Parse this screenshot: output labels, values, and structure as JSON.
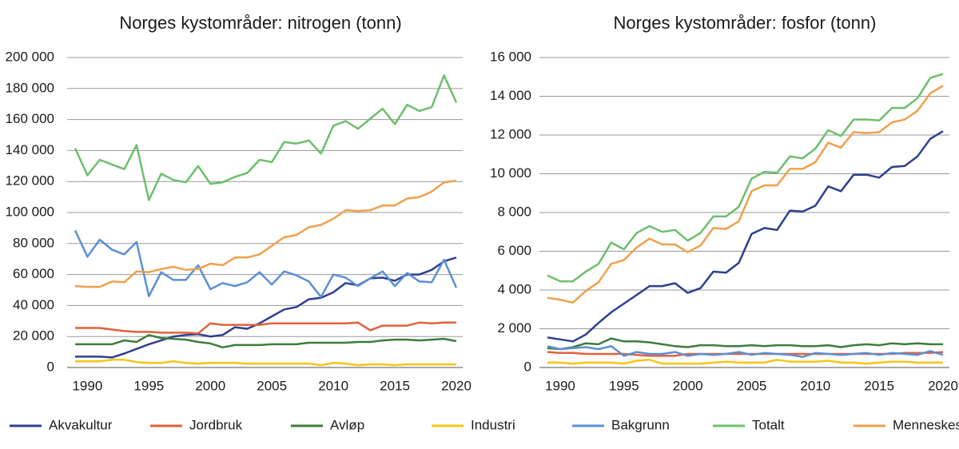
{
  "legend": [
    {
      "name": "Akvakultur",
      "color": "#2e3f8f"
    },
    {
      "name": "Jordbruk",
      "color": "#e0623a"
    },
    {
      "name": "Avløp",
      "color": "#3d7d3a"
    },
    {
      "name": "Industri",
      "color": "#f5c518"
    },
    {
      "name": "Bakgrunn",
      "color": "#5b8fd6"
    },
    {
      "name": "Totalt",
      "color": "#6cbf6c"
    },
    {
      "name": "Menneskeskapt",
      "color": "#f0a04b"
    }
  ],
  "chart_data": [
    {
      "type": "line",
      "title": "Norges kystområder: nitrogen (tonn)",
      "x": [
        1989,
        1990,
        1991,
        1992,
        1993,
        1994,
        1995,
        1996,
        1997,
        1998,
        1999,
        2000,
        2001,
        2002,
        2003,
        2004,
        2005,
        2006,
        2007,
        2008,
        2009,
        2010,
        2011,
        2012,
        2013,
        2014,
        2015,
        2016,
        2017,
        2018,
        2019,
        2020
      ],
      "xlim": [
        1989,
        2020
      ],
      "xticks": [
        1990,
        1995,
        2000,
        2005,
        2010,
        2015,
        2020
      ],
      "ylim": [
        0,
        200000
      ],
      "yticks": [
        0,
        {
          "value": 20000,
          "label": "20 000"
        },
        {
          "value": 40000,
          "label": "40 000"
        },
        {
          "value": 60000,
          "label": "60 000"
        },
        {
          "value": 80000,
          "label": "80 000"
        },
        {
          "value": 100000,
          "label": "100 000"
        },
        {
          "value": 120000,
          "label": "120 000"
        },
        {
          "value": 140000,
          "label": "140 000"
        },
        {
          "value": 160000,
          "label": "160 000"
        },
        {
          "value": 180000,
          "label": "180 000"
        },
        {
          "value": 200000,
          "label": "200 000"
        }
      ],
      "grid": true,
      "series": [
        {
          "color": "#2e3f8f",
          "values": [
            7000,
            7000,
            7000,
            6500,
            9000,
            12000,
            15000,
            17500,
            20000,
            21000,
            21500,
            20000,
            21000,
            26000,
            25000,
            28500,
            33000,
            37500,
            39000,
            44000,
            45000,
            48500,
            54500,
            53000,
            57500,
            58000,
            56000,
            60000,
            60000,
            63000,
            68500,
            71000
          ]
        },
        {
          "color": "#e0623a",
          "values": [
            25500,
            25500,
            25500,
            24500,
            23500,
            23000,
            23000,
            22500,
            22500,
            22500,
            22000,
            28500,
            27500,
            27500,
            27500,
            27500,
            28500,
            28500,
            28500,
            28500,
            28500,
            28500,
            28500,
            29000,
            24000,
            27000,
            27000,
            27000,
            29000,
            28500,
            29000,
            29000
          ]
        },
        {
          "color": "#3d7d3a",
          "values": [
            15000,
            15000,
            15000,
            15000,
            17500,
            16500,
            21000,
            19000,
            18500,
            18000,
            16500,
            15500,
            13000,
            14500,
            14500,
            14500,
            15000,
            15000,
            15000,
            16000,
            16000,
            16000,
            16000,
            16500,
            16500,
            17500,
            18000,
            18000,
            17500,
            18000,
            18500,
            17000
          ]
        },
        {
          "color": "#f5c518",
          "values": [
            4000,
            4000,
            4000,
            5000,
            5000,
            3500,
            3000,
            3000,
            4000,
            3000,
            2500,
            3000,
            3000,
            3000,
            2500,
            2500,
            2500,
            2500,
            2500,
            2500,
            1500,
            3000,
            2500,
            1500,
            2000,
            2000,
            1500,
            2000,
            2000,
            2000,
            2000,
            2000
          ]
        },
        {
          "color": "#5b8fd6",
          "values": [
            88500,
            71500,
            82500,
            76000,
            73000,
            81000,
            46000,
            61500,
            56500,
            56500,
            66000,
            50500,
            54500,
            52500,
            55000,
            61500,
            53500,
            62000,
            59500,
            55500,
            45500,
            60000,
            58000,
            52500,
            57500,
            62000,
            52500,
            61000,
            55500,
            55000,
            69500,
            51500
          ]
        },
        {
          "color": "#6cbf6c",
          "values": [
            141500,
            124000,
            134000,
            131000,
            128000,
            143500,
            108000,
            125000,
            121000,
            119500,
            130000,
            118500,
            119500,
            123000,
            125500,
            134000,
            132500,
            145500,
            144500,
            146500,
            138000,
            156000,
            159000,
            154000,
            160500,
            167000,
            157000,
            169500,
            165500,
            168000,
            188500,
            171000
          ]
        },
        {
          "color": "#f0a04b",
          "values": [
            52500,
            52000,
            52000,
            55500,
            55000,
            62000,
            61500,
            63500,
            65000,
            63000,
            63500,
            67000,
            66000,
            71000,
            71000,
            73000,
            78500,
            84000,
            85500,
            90500,
            92000,
            96000,
            101500,
            101000,
            101500,
            104500,
            104500,
            109000,
            110000,
            113500,
            119500,
            120500
          ]
        }
      ]
    },
    {
      "type": "line",
      "title": "Norges kystområder: fosfor (tonn)",
      "x": [
        1989,
        1990,
        1991,
        1992,
        1993,
        1994,
        1995,
        1996,
        1997,
        1998,
        1999,
        2000,
        2001,
        2002,
        2003,
        2004,
        2005,
        2006,
        2007,
        2008,
        2009,
        2010,
        2011,
        2012,
        2013,
        2014,
        2015,
        2016,
        2017,
        2018,
        2019,
        2020
      ],
      "xlim": [
        1989,
        2020
      ],
      "xticks": [
        1990,
        1995,
        2000,
        2005,
        2010,
        2015,
        2020
      ],
      "ylim": [
        0,
        16000
      ],
      "yticks": [
        0,
        {
          "value": 2000,
          "label": "2 000"
        },
        {
          "value": 4000,
          "label": "4 000"
        },
        {
          "value": 6000,
          "label": "6 000"
        },
        {
          "value": 8000,
          "label": "8 000"
        },
        {
          "value": 10000,
          "label": "10 000"
        },
        {
          "value": 12000,
          "label": "12 000"
        },
        {
          "value": 14000,
          "label": "14 000"
        },
        {
          "value": 16000,
          "label": "16 000"
        }
      ],
      "grid": true,
      "series": [
        {
          "color": "#2e3f8f",
          "values": [
            1550,
            1450,
            1350,
            1700,
            2300,
            2850,
            3300,
            3750,
            4200,
            4200,
            4350,
            3850,
            4100,
            4950,
            4900,
            5400,
            6900,
            7200,
            7100,
            8100,
            8050,
            8350,
            9350,
            9100,
            9950,
            9950,
            9800,
            10350,
            10400,
            10900,
            11800,
            12200
          ]
        },
        {
          "color": "#e0623a",
          "values": [
            800,
            750,
            750,
            700,
            700,
            700,
            700,
            650,
            600,
            600,
            600,
            700,
            700,
            700,
            700,
            700,
            700,
            700,
            700,
            700,
            700,
            700,
            700,
            700,
            700,
            700,
            700,
            700,
            750,
            750,
            750,
            800
          ]
        },
        {
          "color": "#3d7d3a",
          "values": [
            1000,
            950,
            1050,
            1250,
            1200,
            1500,
            1350,
            1350,
            1300,
            1200,
            1100,
            1050,
            1150,
            1150,
            1100,
            1100,
            1150,
            1100,
            1150,
            1150,
            1100,
            1100,
            1150,
            1050,
            1150,
            1200,
            1150,
            1250,
            1200,
            1250,
            1200,
            1200
          ]
        },
        {
          "color": "#f5c518",
          "values": [
            250,
            250,
            200,
            250,
            250,
            250,
            200,
            350,
            400,
            200,
            200,
            200,
            200,
            250,
            300,
            250,
            250,
            250,
            400,
            300,
            300,
            300,
            350,
            250,
            250,
            200,
            250,
            300,
            300,
            250,
            250,
            250
          ]
        },
        {
          "color": "#5b8fd6",
          "values": [
            1100,
            950,
            1000,
            1050,
            950,
            1100,
            600,
            800,
            700,
            700,
            800,
            600,
            700,
            650,
            700,
            800,
            650,
            750,
            700,
            650,
            550,
            750,
            700,
            650,
            700,
            750,
            650,
            750,
            700,
            650,
            850,
            650
          ]
        },
        {
          "color": "#6cbf6c",
          "values": [
            4750,
            4450,
            4450,
            4950,
            5350,
            6450,
            6100,
            6950,
            7300,
            7000,
            7100,
            6550,
            6950,
            7800,
            7800,
            8300,
            9750,
            10100,
            10050,
            10900,
            10800,
            11300,
            12250,
            11950,
            12800,
            12800,
            12750,
            13400,
            13400,
            13900,
            14950,
            15150
          ]
        },
        {
          "color": "#f0a04b",
          "values": [
            3600,
            3500,
            3350,
            3950,
            4400,
            5350,
            5550,
            6200,
            6650,
            6350,
            6350,
            5950,
            6300,
            7200,
            7150,
            7550,
            9100,
            9400,
            9400,
            10250,
            10250,
            10600,
            11600,
            11350,
            12150,
            12100,
            12150,
            12650,
            12800,
            13250,
            14150,
            14550
          ]
        }
      ]
    }
  ]
}
